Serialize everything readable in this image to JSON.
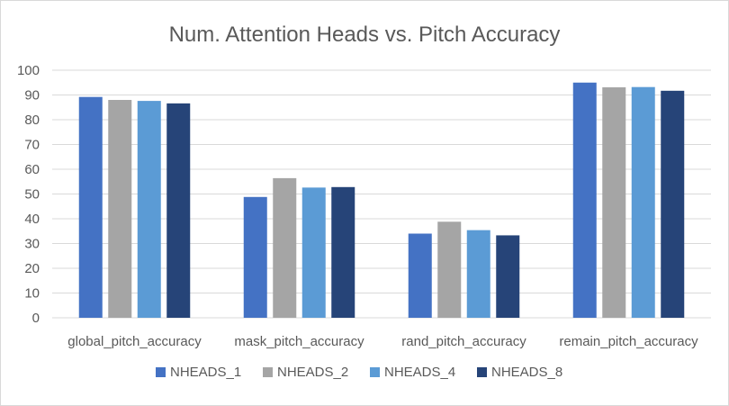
{
  "chart_data": {
    "type": "bar",
    "title": "Num. Attention Heads vs. Pitch Accuracy",
    "xlabel": "",
    "ylabel": "",
    "ylim": [
      0,
      100
    ],
    "yticks": [
      0,
      10,
      20,
      30,
      40,
      50,
      60,
      70,
      80,
      90,
      100
    ],
    "grid": true,
    "legend_position": "bottom",
    "categories": [
      "global_pitch_accuracy",
      "mask_pitch_accuracy",
      "rand_pitch_accuracy",
      "remain_pitch_accuracy"
    ],
    "series": [
      {
        "name": "NHEADS_1",
        "color": "#4472c4",
        "values": [
          89.2,
          48.8,
          34.0,
          95.0
        ]
      },
      {
        "name": "NHEADS_2",
        "color": "#a5a5a5",
        "values": [
          88.0,
          56.4,
          38.8,
          93.1
        ]
      },
      {
        "name": "NHEADS_4",
        "color": "#5b9bd5",
        "values": [
          87.6,
          52.6,
          35.4,
          93.2
        ]
      },
      {
        "name": "NHEADS_8",
        "color": "#264478",
        "values": [
          86.6,
          52.8,
          33.3,
          91.7
        ]
      }
    ]
  }
}
